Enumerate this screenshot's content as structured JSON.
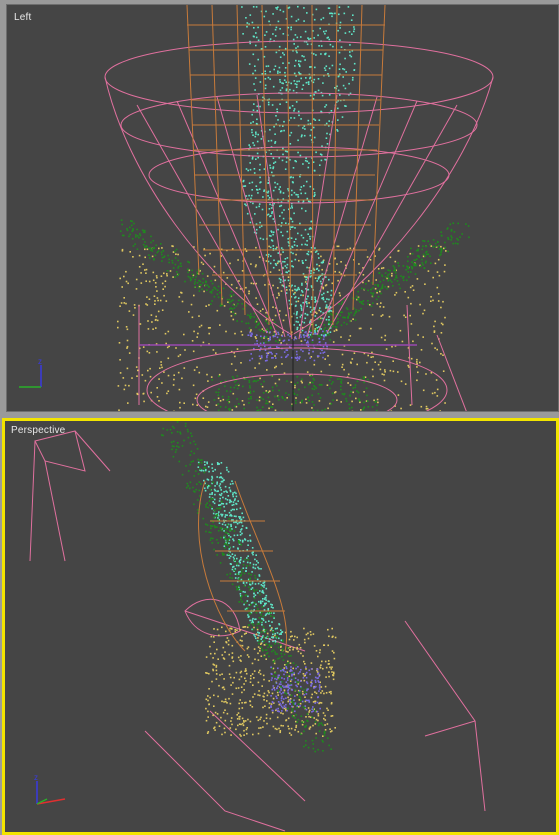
{
  "viewports": {
    "left": {
      "label": "Left",
      "active": false
    },
    "perspective": {
      "label": "Perspective",
      "active": true
    }
  },
  "colors": {
    "background": "#454545",
    "active_border": "#f2e400",
    "wire_pink": "#e0709e",
    "wire_orange": "#c77a3a",
    "particles_cyan": "#5fe6c8",
    "particles_green": "#1f8a1f",
    "particles_yellow": "#e0c860",
    "particles_purple": "#7a6ae0"
  },
  "gizmo_icons": [
    "axis-gizmo-icon"
  ]
}
